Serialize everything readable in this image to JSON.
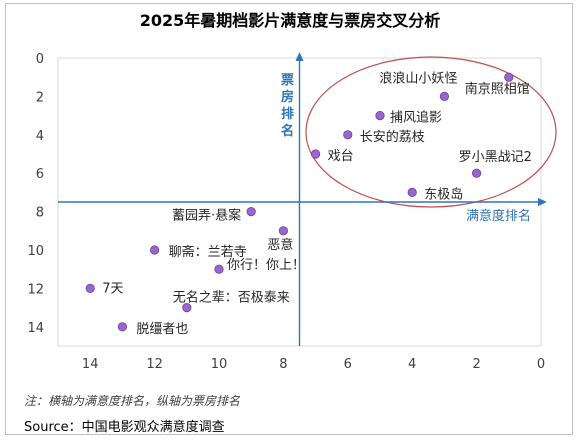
{
  "chart_data": {
    "type": "scatter",
    "title": "2025年暑期档影片满意度与票房交叉分析",
    "xlabel": "满意度排名",
    "ylabel": "票房排名",
    "xlim": [
      15,
      0
    ],
    "ylim": [
      15,
      0
    ],
    "x_reversed": true,
    "y_reversed": true,
    "x_ticks": [
      "14",
      "12",
      "10",
      "8",
      "6",
      "4",
      "2",
      "0"
    ],
    "y_ticks": [
      "0",
      "2",
      "4",
      "6",
      "8",
      "10",
      "12",
      "14"
    ],
    "crosshair": {
      "x": 7.5,
      "y": 7.5
    },
    "grid": false,
    "highlight": "ellipse around top-right quadrant",
    "point_color": "#9966cc",
    "axis_color": "#2e75b6",
    "ellipse_color": "#c0504d",
    "points": [
      {
        "label": "浪浪山小妖怪",
        "x": 3,
        "y": 2
      },
      {
        "label": "南京照相馆",
        "x": 1,
        "y": 1
      },
      {
        "label": "捕风追影",
        "x": 5,
        "y": 3
      },
      {
        "label": "长安的荔枝",
        "x": 6,
        "y": 4
      },
      {
        "label": "戏台",
        "x": 7,
        "y": 5
      },
      {
        "label": "罗小黑战记2",
        "x": 2,
        "y": 6
      },
      {
        "label": "东极岛",
        "x": 4,
        "y": 7
      },
      {
        "label": "蓄园弄·悬案",
        "x": 9,
        "y": 8
      },
      {
        "label": "恶意",
        "x": 8,
        "y": 9
      },
      {
        "label": "聊斋：兰若寺",
        "x": 12,
        "y": 10
      },
      {
        "label": "你行！你上！",
        "x": 10,
        "y": 11
      },
      {
        "label": "7天",
        "x": 14,
        "y": 12
      },
      {
        "label": "无名之辈：否极泰来",
        "x": 11,
        "y": 13
      },
      {
        "label": "脱缰者也",
        "x": 13,
        "y": 14
      }
    ]
  },
  "footer": {
    "note": "注：横轴为满意度排名，纵轴为票房排名",
    "source": "Source：中国电影观众满意度调查"
  }
}
